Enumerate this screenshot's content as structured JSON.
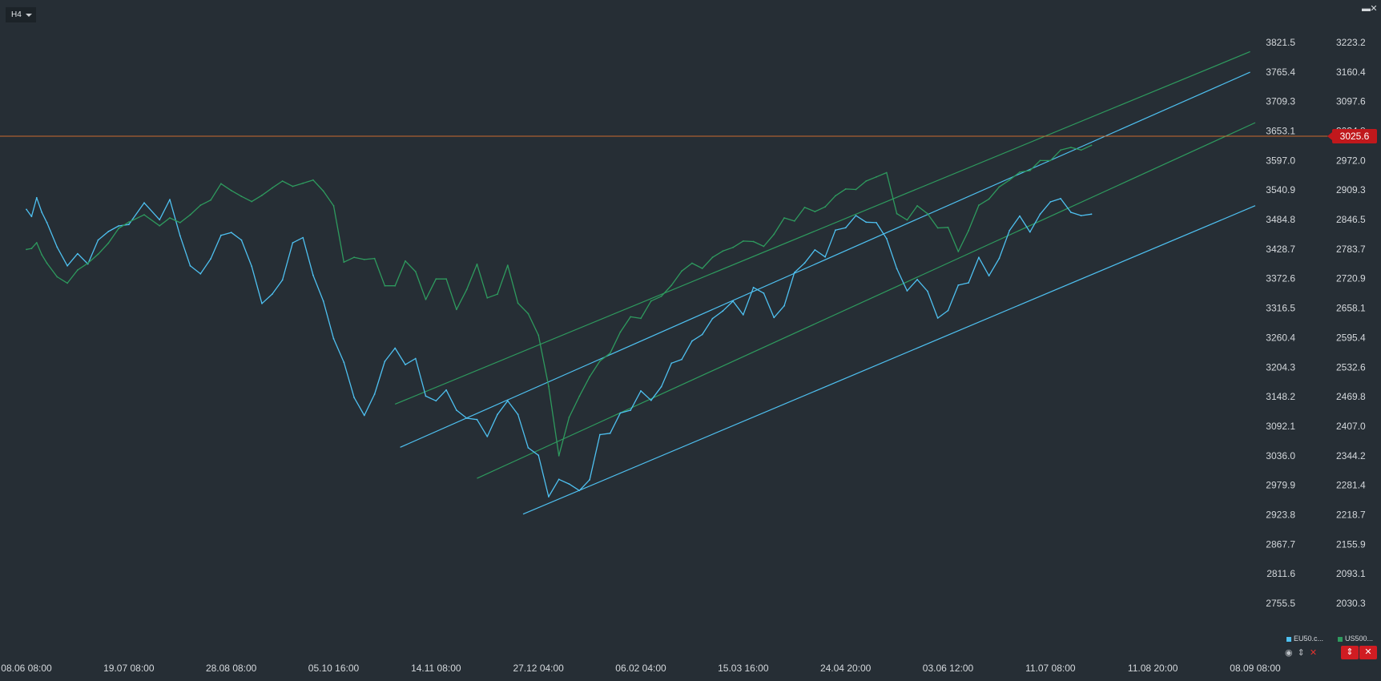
{
  "timeframe": {
    "label": "H4"
  },
  "window_controls": {
    "minimize": "▬",
    "close": "✕"
  },
  "current_price": {
    "label": "3025.6",
    "color": "#c0181c"
  },
  "legend": [
    {
      "label": "EU50.c...",
      "color": "#4ec0f0"
    },
    {
      "label": "US500...",
      "color": "#2e9a5e"
    }
  ],
  "toolbar": {
    "eye_icon": "eye-icon",
    "arrows_icon": "sort-arrows-icon",
    "close_icon": "close-icon"
  },
  "buttons": {
    "split": "⇕",
    "close": "✕"
  },
  "colors": {
    "background": "#262e35",
    "eu50": "#4ec0f0",
    "us500": "#2e9a5e",
    "price_line": "#c96b2e"
  },
  "chart_data": {
    "type": "line",
    "x_ticks": [
      "08.06 08:00",
      "19.07 08:00",
      "28.08 08:00",
      "05.10 16:00",
      "14.11 08:00",
      "27.12 04:00",
      "06.02 04:00",
      "15.03 16:00",
      "24.04 20:00",
      "03.06 12:00",
      "11.07 08:00",
      "11.08 20:00",
      "08.09 08:00"
    ],
    "y_left_ticks": [
      "3821.5",
      "3765.4",
      "3709.3",
      "3653.1",
      "3597.0",
      "3540.9",
      "3484.8",
      "3428.7",
      "3372.6",
      "3316.5",
      "3260.4",
      "3204.3",
      "3148.2",
      "3092.1",
      "3036.0",
      "2979.9",
      "2923.8",
      "2867.7",
      "2811.6",
      "2755.5"
    ],
    "y_right_ticks": [
      "3223.2",
      "3160.4",
      "3097.6",
      "3034.8",
      "2972.0",
      "2909.3",
      "2846.5",
      "2783.7",
      "2720.9",
      "2658.1",
      "2595.4",
      "2532.6",
      "2469.8",
      "2407.0",
      "2344.2",
      "2281.4",
      "2218.7",
      "2155.9",
      "2093.1",
      "2030.3"
    ],
    "y_left_range": [
      2755.5,
      3821.5
    ],
    "y_right_range": [
      2030.3,
      3223.2
    ],
    "x_index_range": [
      0,
      12
    ],
    "current_price": 3025.6,
    "series": [
      {
        "name": "EU50.c...",
        "axis": "right",
        "color": "#4ec0f0",
        "x": [
          0,
          0.05,
          0.1,
          0.15,
          0.2,
          0.3,
          0.4,
          0.5,
          0.6,
          0.7,
          0.8,
          0.9,
          1.0,
          1.15,
          1.3,
          1.4,
          1.5,
          1.6,
          1.7,
          1.8,
          1.9,
          2.0,
          2.1,
          2.2,
          2.3,
          2.4,
          2.5,
          2.6,
          2.7,
          2.8,
          2.9,
          3.0,
          3.1,
          3.2,
          3.3,
          3.4,
          3.5,
          3.6,
          3.7,
          3.8,
          3.9,
          4.0,
          4.1,
          4.2,
          4.3,
          4.4,
          4.5,
          4.6,
          4.7,
          4.8,
          4.9,
          5.0,
          5.1,
          5.2,
          5.3,
          5.4,
          5.5,
          5.6,
          5.7,
          5.8,
          5.9,
          6.0,
          6.1,
          6.2,
          6.3,
          6.4,
          6.5,
          6.6,
          6.7,
          6.8,
          6.9,
          7.0,
          7.1,
          7.2,
          7.3,
          7.4,
          7.5,
          7.6,
          7.7,
          7.8,
          7.9,
          8.0,
          8.1,
          8.2,
          8.3,
          8.4,
          8.5,
          8.6,
          8.7,
          8.8,
          8.9,
          9.0,
          9.1,
          9.2,
          9.3,
          9.4,
          9.5,
          9.6,
          9.7,
          9.8,
          9.9,
          10.0,
          10.1,
          10.2,
          10.3,
          10.4
        ],
        "values": [
          2868,
          2853,
          2893,
          2862,
          2840,
          2788,
          2748,
          2774,
          2752,
          2803,
          2821,
          2833,
          2836,
          2882,
          2846,
          2889,
          2812,
          2748,
          2731,
          2763,
          2813,
          2819,
          2803,
          2747,
          2668,
          2688,
          2718,
          2797,
          2808,
          2728,
          2673,
          2593,
          2543,
          2468,
          2430,
          2475,
          2545,
          2573,
          2538,
          2551,
          2471,
          2461,
          2484,
          2441,
          2424,
          2421,
          2385,
          2432,
          2461,
          2432,
          2361,
          2345,
          2257,
          2294,
          2284,
          2270,
          2293,
          2389,
          2392,
          2435,
          2441,
          2482,
          2462,
          2491,
          2541,
          2549,
          2588,
          2602,
          2636,
          2652,
          2673,
          2644,
          2702,
          2690,
          2638,
          2663,
          2734,
          2754,
          2782,
          2767,
          2824,
          2829,
          2855,
          2841,
          2840,
          2806,
          2742,
          2695,
          2719,
          2694,
          2637,
          2653,
          2707,
          2712,
          2766,
          2727,
          2764,
          2823,
          2854,
          2820,
          2858,
          2884,
          2891,
          2862,
          2855,
          2858
        ]
      },
      {
        "name": "US500...",
        "axis": "left",
        "color": "#2e9a5e",
        "x": [
          0,
          0.05,
          0.1,
          0.15,
          0.2,
          0.3,
          0.4,
          0.5,
          0.6,
          0.7,
          0.8,
          0.9,
          1.0,
          1.15,
          1.3,
          1.4,
          1.5,
          1.6,
          1.7,
          1.8,
          1.9,
          2.0,
          2.1,
          2.2,
          2.3,
          2.4,
          2.5,
          2.6,
          2.7,
          2.8,
          2.9,
          3.0,
          3.1,
          3.2,
          3.3,
          3.4,
          3.5,
          3.6,
          3.7,
          3.8,
          3.9,
          4.0,
          4.1,
          4.2,
          4.3,
          4.4,
          4.5,
          4.6,
          4.7,
          4.8,
          4.9,
          5.0,
          5.1,
          5.2,
          5.3,
          5.4,
          5.5,
          5.6,
          5.7,
          5.8,
          5.9,
          6.0,
          6.1,
          6.2,
          6.3,
          6.4,
          6.5,
          6.6,
          6.7,
          6.8,
          6.9,
          7.0,
          7.1,
          7.2,
          7.3,
          7.4,
          7.5,
          7.6,
          7.7,
          7.8,
          7.9,
          8.0,
          8.1,
          8.2,
          8.3,
          8.4,
          8.5,
          8.6,
          8.7,
          8.8,
          8.9,
          9.0,
          9.1,
          9.2,
          9.3,
          9.4,
          9.5,
          9.6,
          9.7,
          9.8,
          9.9,
          10.0,
          10.1,
          10.2,
          10.3,
          10.4
        ],
        "values": [
          3428,
          3430,
          3441,
          3418,
          3402,
          3376,
          3364,
          3389,
          3402,
          3419,
          3440,
          3468,
          3480,
          3494,
          3473,
          3488,
          3479,
          3494,
          3512,
          3522,
          3553,
          3540,
          3529,
          3519,
          3531,
          3545,
          3558,
          3548,
          3554,
          3560,
          3539,
          3511,
          3404,
          3413,
          3409,
          3411,
          3359,
          3359,
          3406,
          3386,
          3333,
          3372,
          3372,
          3314,
          3352,
          3400,
          3336,
          3343,
          3398,
          3326,
          3306,
          3265,
          3168,
          3036,
          3109,
          3149,
          3186,
          3216,
          3231,
          3271,
          3300,
          3297,
          3330,
          3339,
          3360,
          3387,
          3402,
          3392,
          3413,
          3425,
          3432,
          3444,
          3443,
          3434,
          3457,
          3488,
          3482,
          3508,
          3500,
          3509,
          3530,
          3543,
          3542,
          3558,
          3566,
          3574,
          3496,
          3484,
          3511,
          3496,
          3469,
          3470,
          3424,
          3464,
          3512,
          3524,
          3547,
          3560,
          3575,
          3578,
          3597,
          3597,
          3617,
          3622,
          3617,
          3626
        ]
      }
    ],
    "channels": [
      {
        "color": "#2e9a5e",
        "axis": "left",
        "from": [
          3.6,
          3134
        ],
        "to": [
          11.95,
          3804
        ]
      },
      {
        "color": "#2e9a5e",
        "axis": "left",
        "from": [
          4.4,
          2993
        ],
        "to": [
          12.0,
          3669
        ]
      },
      {
        "color": "#4ec0f0",
        "axis": "right",
        "from": [
          3.65,
          2362
        ],
        "to": [
          11.95,
          3160
        ]
      },
      {
        "color": "#4ec0f0",
        "axis": "right",
        "from": [
          4.85,
          2220
        ],
        "to": [
          12.0,
          2876
        ]
      }
    ],
    "grid": false,
    "legend_position": "bottom-right"
  }
}
